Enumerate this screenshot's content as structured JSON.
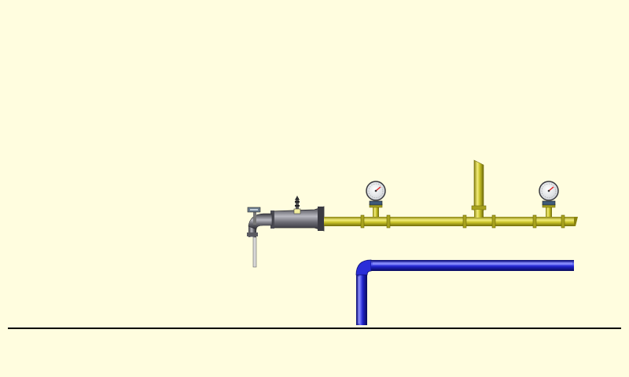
{
  "scene": {
    "background": "#fffddf",
    "ground_line_color": "#000000",
    "gas_pipe_color": "#c8c228",
    "water_pipe_color": "#1e22c8",
    "burner_color": "#5a5a62",
    "gauge_needle_color": "#e02020",
    "gauges": [
      {
        "name": "pressure-gauge-1",
        "icon": "pressure-gauge-icon"
      },
      {
        "name": "pressure-gauge-2",
        "icon": "pressure-gauge-icon"
      }
    ],
    "valves": [
      {
        "name": "inlet-valve",
        "icon": "valve-handle-icon"
      },
      {
        "name": "igniter",
        "icon": "spark-plug-icon"
      }
    ]
  }
}
